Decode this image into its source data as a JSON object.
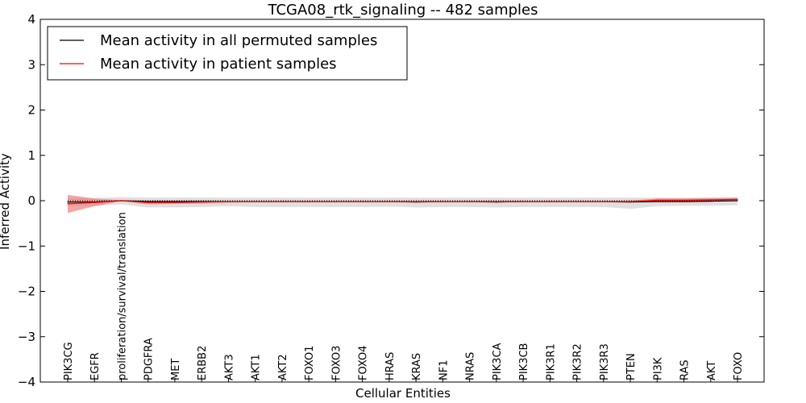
{
  "chart_data": {
    "type": "line",
    "title": "TCGA08_rtk_signaling -- 482 samples",
    "xlabel": "Cellular Entities",
    "ylabel": "Inferred Activity",
    "ylim": [
      -4,
      4
    ],
    "yticks": [
      4,
      3,
      2,
      1,
      0,
      -1,
      -2,
      -3,
      -4
    ],
    "ytick_labels": [
      "4",
      "3",
      "2",
      "1",
      "0",
      "−1",
      "−2",
      "−3",
      "−4"
    ],
    "categories": [
      "PIK3CG",
      "EGFR",
      "proliferation/survival/translation",
      "PDGFRA",
      "MET",
      "ERBB2",
      "AKT3",
      "AKT1",
      "AKT2",
      "FOXO1",
      "FOXO3",
      "FOXO4",
      "HRAS",
      "KRAS",
      "NF1",
      "NRAS",
      "PIK3CA",
      "PIK3CB",
      "PIK3R1",
      "PIK3R2",
      "PIK3R3",
      "PTEN",
      "PI3K",
      "RAS",
      "AKT",
      "FOXO"
    ],
    "legend_position": "top-left",
    "series": [
      {
        "name": "Mean activity in all permuted samples",
        "color": "#000000",
        "band_color": "#d3d3d3",
        "values": [
          -0.03,
          -0.03,
          0.0,
          -0.02,
          -0.02,
          -0.02,
          -0.02,
          -0.02,
          -0.02,
          -0.02,
          -0.02,
          -0.02,
          -0.02,
          -0.03,
          -0.02,
          -0.02,
          -0.03,
          -0.02,
          -0.02,
          -0.02,
          -0.02,
          -0.03,
          -0.02,
          -0.02,
          -0.01,
          0.0
        ],
        "band_upper": [
          0.06,
          0.06,
          0.08,
          0.07,
          0.07,
          0.07,
          0.07,
          0.07,
          0.07,
          0.07,
          0.07,
          0.07,
          0.07,
          0.07,
          0.07,
          0.07,
          0.07,
          0.07,
          0.07,
          0.07,
          0.07,
          0.07,
          0.07,
          0.07,
          0.07,
          0.07
        ],
        "band_lower": [
          -0.12,
          -0.12,
          -0.08,
          -0.15,
          -0.15,
          -0.14,
          -0.12,
          -0.14,
          -0.14,
          -0.14,
          -0.14,
          -0.14,
          -0.13,
          -0.15,
          -0.14,
          -0.14,
          -0.15,
          -0.14,
          -0.14,
          -0.14,
          -0.14,
          -0.18,
          -0.12,
          -0.11,
          -0.11,
          -0.1
        ]
      },
      {
        "name": "Mean activity in patient samples",
        "color": "#ff0000",
        "band_color": "#f08080",
        "values": [
          -0.07,
          -0.04,
          0.0,
          -0.04,
          -0.04,
          -0.03,
          -0.02,
          -0.02,
          -0.02,
          -0.02,
          -0.02,
          -0.02,
          -0.02,
          -0.02,
          -0.02,
          -0.02,
          -0.02,
          -0.02,
          -0.02,
          -0.02,
          -0.02,
          -0.02,
          0.01,
          0.01,
          0.02,
          0.03
        ],
        "band_upper": [
          0.13,
          0.05,
          0.01,
          0.0,
          0.0,
          0.0,
          -0.01,
          -0.01,
          -0.01,
          -0.01,
          -0.01,
          -0.01,
          -0.01,
          -0.01,
          -0.01,
          -0.01,
          -0.01,
          -0.01,
          -0.01,
          -0.01,
          -0.01,
          0.0,
          0.05,
          0.05,
          0.06,
          0.07
        ],
        "band_lower": [
          -0.27,
          -0.12,
          -0.01,
          -0.08,
          -0.07,
          -0.06,
          -0.04,
          -0.03,
          -0.03,
          -0.03,
          -0.03,
          -0.03,
          -0.03,
          -0.03,
          -0.03,
          -0.03,
          -0.03,
          -0.03,
          -0.03,
          -0.03,
          -0.03,
          -0.03,
          -0.02,
          -0.02,
          -0.01,
          0.0
        ]
      }
    ],
    "reference_line": {
      "y": 0,
      "style": "dotted",
      "color": "#000000"
    }
  }
}
